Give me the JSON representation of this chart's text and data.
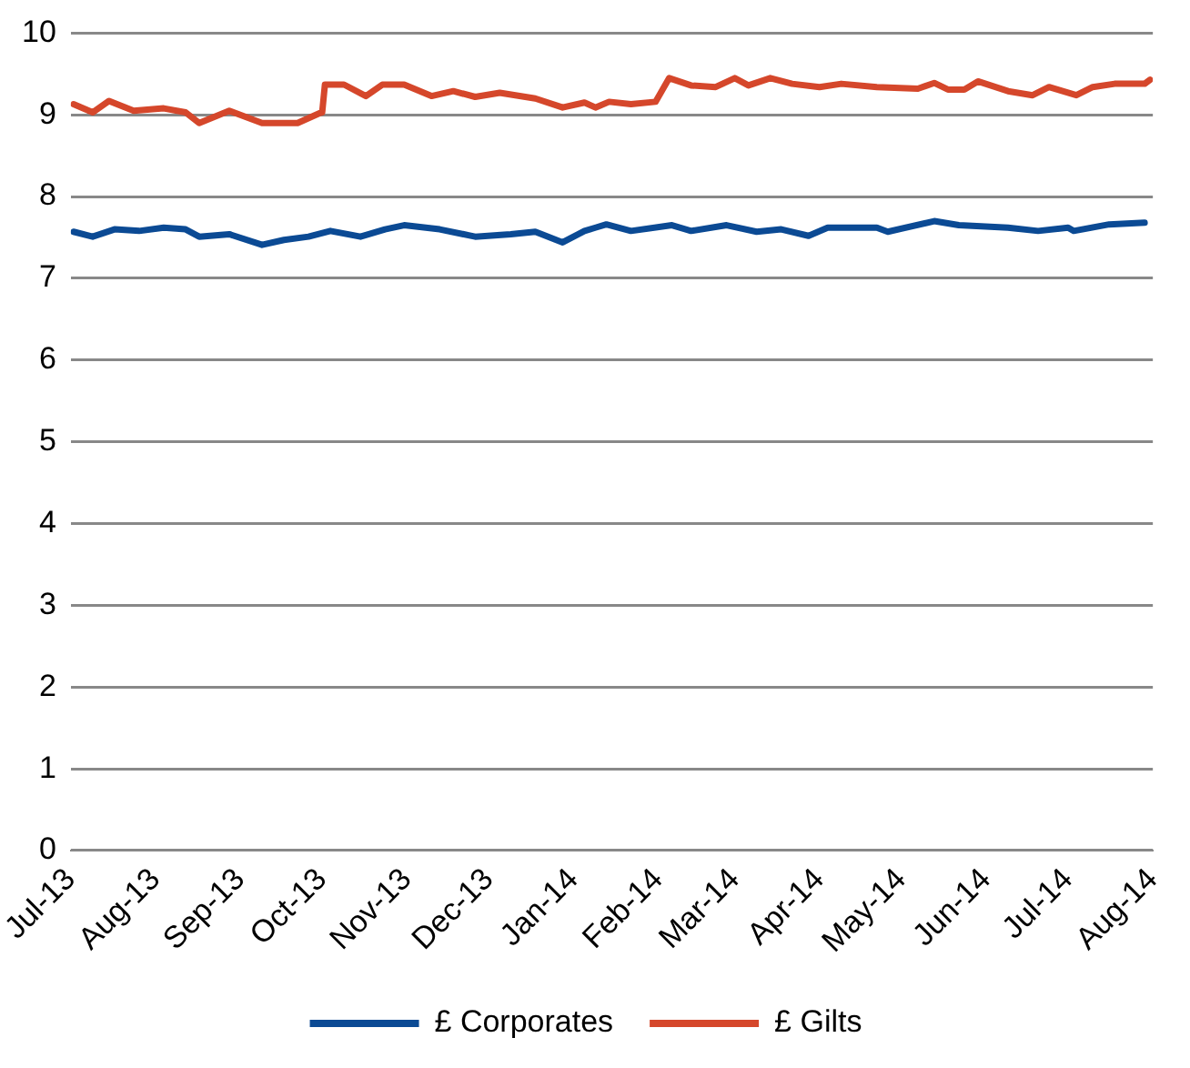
{
  "chart_data": {
    "type": "line",
    "legend": "bottom",
    "grid": "y",
    "marker": "none",
    "line_style": "solid",
    "xlim": [
      "2013-07-01",
      "2014-08-01"
    ],
    "xticks": [
      {
        "value": "2013-07-01",
        "label": "Jul-13"
      },
      {
        "value": "2013-08-01",
        "label": "Aug-13"
      },
      {
        "value": "2013-09-01",
        "label": "Sep-13"
      },
      {
        "value": "2013-10-01",
        "label": "Oct-13"
      },
      {
        "value": "2013-11-01",
        "label": "Nov-13"
      },
      {
        "value": "2013-12-01",
        "label": "Dec-13"
      },
      {
        "value": "2014-01-01",
        "label": "Jan-14"
      },
      {
        "value": "2014-02-01",
        "label": "Feb-14"
      },
      {
        "value": "2014-03-01",
        "label": "Mar-14"
      },
      {
        "value": "2014-04-01",
        "label": "Apr-14"
      },
      {
        "value": "2014-05-01",
        "label": "May-14"
      },
      {
        "value": "2014-06-01",
        "label": "Jun-14"
      },
      {
        "value": "2014-07-01",
        "label": "Jul-14"
      },
      {
        "value": "2014-08-01",
        "label": "Aug-14"
      }
    ],
    "ylim": [
      0,
      10
    ],
    "yticks": [
      0,
      1,
      2,
      3,
      4,
      5,
      6,
      7,
      8,
      9,
      10
    ],
    "series": [
      {
        "name": "£ Corporates",
        "color": "#0b4a94",
        "x": [
          "2013-07-02",
          "2013-07-09",
          "2013-07-17",
          "2013-07-26",
          "2013-08-04",
          "2013-08-12",
          "2013-08-17",
          "2013-08-28",
          "2013-09-09",
          "2013-09-17",
          "2013-09-26",
          "2013-10-04",
          "2013-10-15",
          "2013-10-24",
          "2013-10-31",
          "2013-11-13",
          "2013-11-26",
          "2013-12-09",
          "2013-12-18",
          "2013-12-28",
          "2014-01-05",
          "2014-01-09",
          "2014-01-13",
          "2014-01-22",
          "2014-02-06",
          "2014-02-13",
          "2014-02-26",
          "2014-03-09",
          "2014-03-18",
          "2014-03-28",
          "2014-04-04",
          "2014-04-22",
          "2014-04-26",
          "2014-05-13",
          "2014-05-22",
          "2014-06-09",
          "2014-06-20",
          "2014-07-01",
          "2014-07-03",
          "2014-07-16",
          "2014-07-29"
        ],
        "values": [
          7.57,
          7.51,
          7.6,
          7.58,
          7.62,
          7.6,
          7.51,
          7.54,
          7.41,
          7.47,
          7.51,
          7.58,
          7.51,
          7.6,
          7.65,
          7.6,
          7.51,
          7.54,
          7.57,
          7.44,
          7.58,
          7.62,
          7.66,
          7.58,
          7.65,
          7.58,
          7.65,
          7.57,
          7.6,
          7.52,
          7.62,
          7.62,
          7.57,
          7.7,
          7.65,
          7.62,
          7.58,
          7.62,
          7.58,
          7.66,
          7.68
        ]
      },
      {
        "name": "£ Gilts",
        "color": "#d5472b",
        "x": [
          "2013-07-02",
          "2013-07-09",
          "2013-07-15",
          "2013-07-24",
          "2013-08-04",
          "2013-08-12",
          "2013-08-17",
          "2013-08-28",
          "2013-09-09",
          "2013-09-22",
          "2013-09-30",
          "2013-10-01",
          "2013-10-02",
          "2013-10-09",
          "2013-10-17",
          "2013-10-23",
          "2013-10-31",
          "2013-11-10",
          "2013-11-18",
          "2013-11-26",
          "2013-12-05",
          "2013-12-18",
          "2013-12-28",
          "2014-01-05",
          "2014-01-09",
          "2014-01-14",
          "2014-01-22",
          "2014-01-31",
          "2014-02-05",
          "2014-02-13",
          "2014-02-22",
          "2014-03-01",
          "2014-03-06",
          "2014-03-14",
          "2014-03-22",
          "2014-04-01",
          "2014-04-09",
          "2014-04-22",
          "2014-05-07",
          "2014-05-13",
          "2014-05-18",
          "2014-05-24",
          "2014-05-29",
          "2014-06-09",
          "2014-06-18",
          "2014-06-24",
          "2014-07-04",
          "2014-07-10",
          "2014-07-18",
          "2014-07-29",
          "2014-07-31"
        ],
        "values": [
          9.13,
          9.03,
          9.17,
          9.05,
          9.08,
          9.03,
          8.9,
          9.05,
          8.9,
          8.9,
          9.02,
          9.03,
          9.37,
          9.37,
          9.23,
          9.37,
          9.37,
          9.23,
          9.29,
          9.22,
          9.27,
          9.2,
          9.09,
          9.15,
          9.09,
          9.16,
          9.13,
          9.16,
          9.45,
          9.36,
          9.34,
          9.45,
          9.36,
          9.45,
          9.38,
          9.34,
          9.38,
          9.34,
          9.32,
          9.39,
          9.31,
          9.31,
          9.41,
          9.29,
          9.24,
          9.34,
          9.24,
          9.34,
          9.38,
          9.38,
          9.43
        ]
      }
    ]
  }
}
